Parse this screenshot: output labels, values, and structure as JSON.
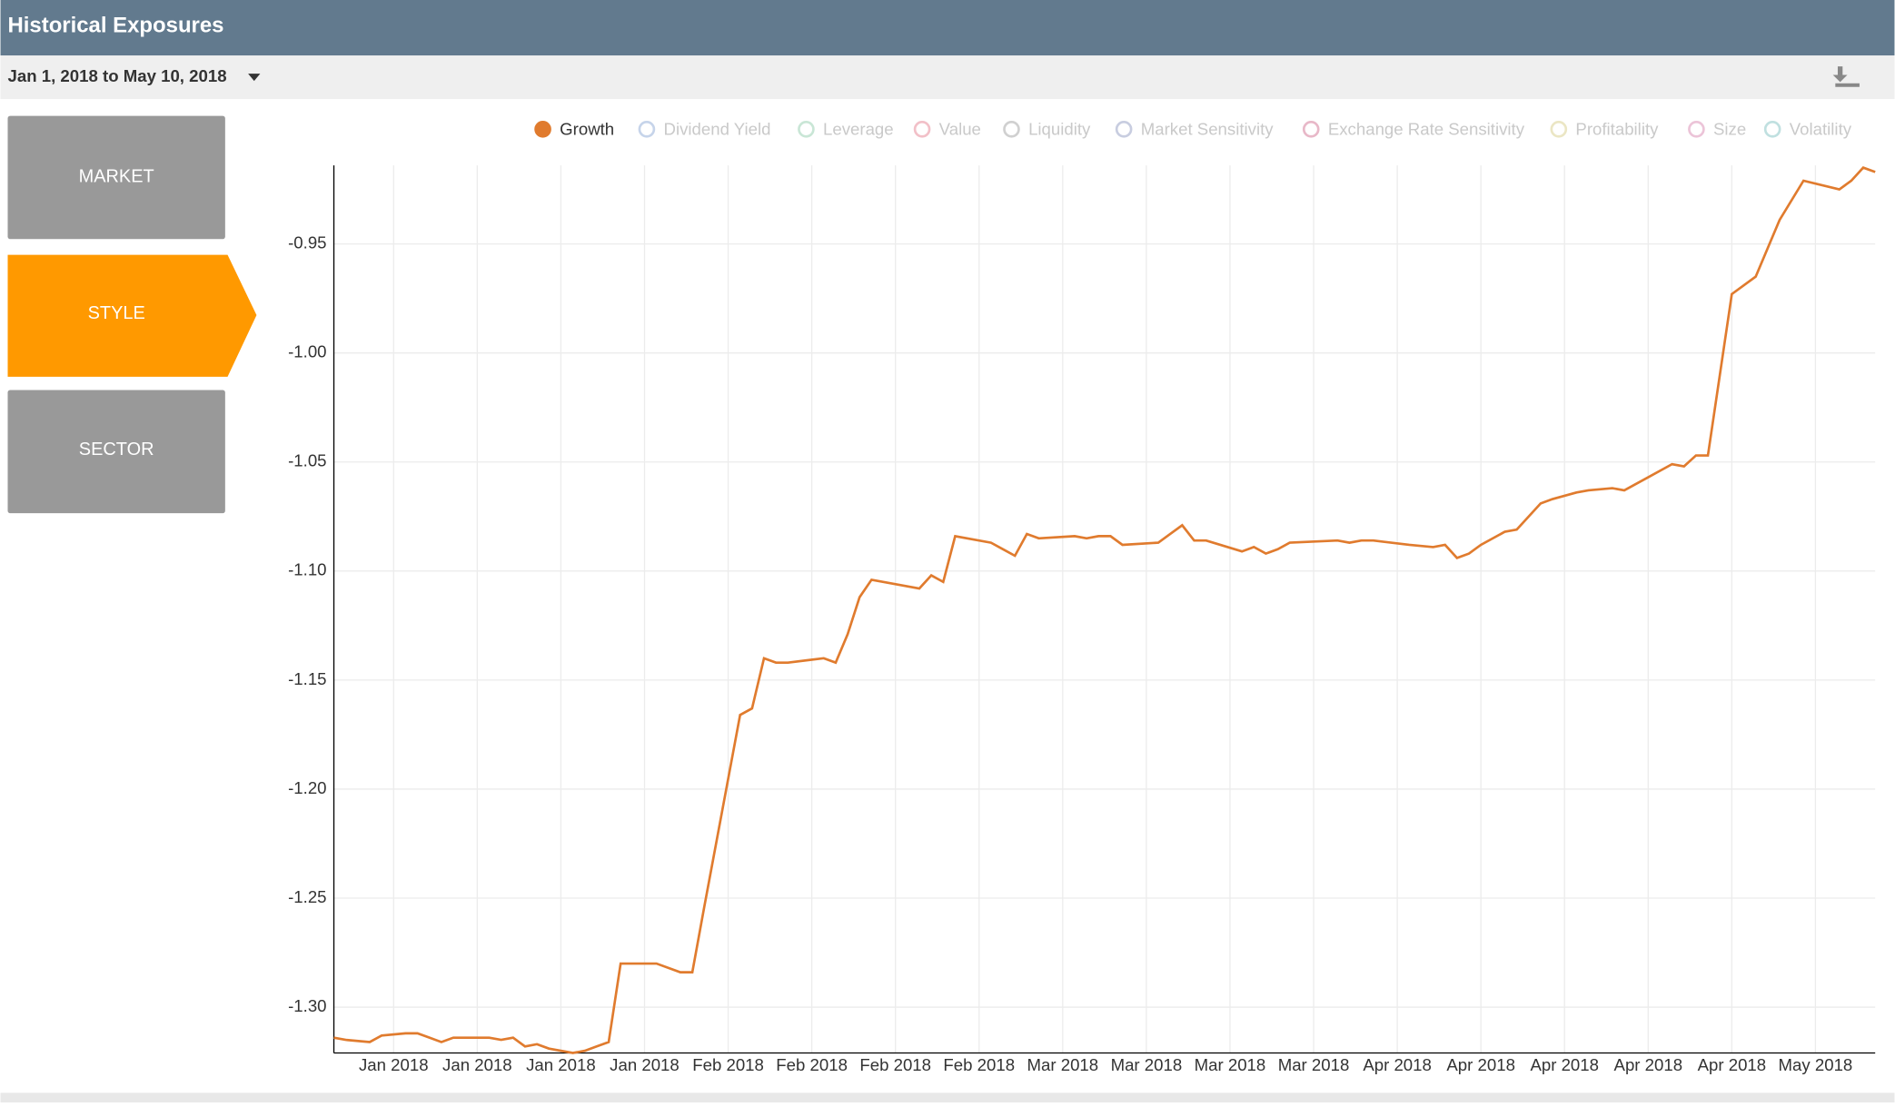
{
  "header": {
    "title": "Historical Exposures"
  },
  "date_range": "Jan 1, 2018 to May 10, 2018",
  "nav": [
    "MARKET",
    "STYLE",
    "SECTOR"
  ],
  "chart_data": {
    "type": "line",
    "x": [
      0,
      1,
      3,
      4,
      6,
      7,
      8,
      9,
      10,
      11,
      13,
      14,
      15,
      16,
      17,
      18,
      19,
      20,
      21,
      22,
      23,
      24,
      26,
      27,
      29,
      30,
      31,
      34,
      35,
      36,
      37,
      38,
      41,
      42,
      43,
      44,
      45,
      49,
      50,
      51,
      52,
      55,
      56,
      57,
      58,
      59,
      62,
      63,
      64,
      65,
      66,
      69,
      70,
      71,
      72,
      73,
      76,
      77,
      78,
      79,
      80,
      84,
      85,
      86,
      87,
      90,
      92,
      93,
      94,
      95,
      96,
      98,
      99,
      100,
      101,
      102,
      104,
      105,
      107,
      108,
      110,
      112,
      113,
      114,
      115,
      117,
      119,
      121,
      123,
      126,
      127,
      128,
      129
    ],
    "series": [
      {
        "name": "Growth",
        "color": "#e07b2e",
        "values": [
          -1.314,
          -1.315,
          -1.316,
          -1.313,
          -1.312,
          -1.312,
          -1.314,
          -1.316,
          -1.314,
          -1.314,
          -1.314,
          -1.315,
          -1.314,
          -1.318,
          -1.317,
          -1.319,
          -1.32,
          -1.321,
          -1.32,
          -1.318,
          -1.316,
          -1.28,
          -1.28,
          -1.28,
          -1.284,
          -1.284,
          -1.254,
          -1.166,
          -1.163,
          -1.14,
          -1.142,
          -1.142,
          -1.14,
          -1.142,
          -1.129,
          -1.112,
          -1.104,
          -1.108,
          -1.102,
          -1.105,
          -1.084,
          -1.087,
          -1.09,
          -1.093,
          -1.083,
          -1.085,
          -1.084,
          -1.085,
          -1.084,
          -1.084,
          -1.088,
          -1.087,
          -1.083,
          -1.079,
          -1.086,
          -1.086,
          -1.091,
          -1.089,
          -1.092,
          -1.09,
          -1.087,
          -1.086,
          -1.087,
          -1.086,
          -1.086,
          -1.088,
          -1.089,
          -1.088,
          -1.094,
          -1.092,
          -1.088,
          -1.082,
          -1.081,
          -1.075,
          -1.069,
          -1.067,
          -1.064,
          -1.063,
          -1.062,
          -1.063,
          -1.057,
          -1.051,
          -1.052,
          -1.047,
          -1.047,
          -0.973,
          -0.965,
          -0.939,
          -0.921,
          -0.925,
          -0.921,
          -0.915,
          -0.917
        ]
      }
    ],
    "hidden_series": [
      {
        "name": "Dividend Yield",
        "color": "#c6d4ea"
      },
      {
        "name": "Leverage",
        "color": "#c9e6d6"
      },
      {
        "name": "Value",
        "color": "#f2c0c8"
      },
      {
        "name": "Liquidity",
        "color": "#d0d0d0"
      },
      {
        "name": "Market Sensitivity",
        "color": "#c8cde0"
      },
      {
        "name": "Exchange Rate Sensitivity",
        "color": "#e8b8c8"
      },
      {
        "name": "Profitability",
        "color": "#ebe6c4"
      },
      {
        "name": "Size",
        "color": "#ecc4d8"
      },
      {
        "name": "Volatility",
        "color": "#c0e0e0"
      }
    ],
    "xlim": [
      0,
      129
    ],
    "xticks": [
      {
        "value": 5,
        "label": "Jan 2018"
      },
      {
        "value": 12,
        "label": "Jan 2018"
      },
      {
        "value": 19,
        "label": "Jan 2018"
      },
      {
        "value": 26,
        "label": "Jan 2018"
      },
      {
        "value": 33,
        "label": "Feb 2018"
      },
      {
        "value": 40,
        "label": "Feb 2018"
      },
      {
        "value": 47,
        "label": "Feb 2018"
      },
      {
        "value": 54,
        "label": "Feb 2018"
      },
      {
        "value": 61,
        "label": "Mar 2018"
      },
      {
        "value": 68,
        "label": "Mar 2018"
      },
      {
        "value": 75,
        "label": "Mar 2018"
      },
      {
        "value": 82,
        "label": "Mar 2018"
      },
      {
        "value": 89,
        "label": "Apr 2018"
      },
      {
        "value": 96,
        "label": "Apr 2018"
      },
      {
        "value": 103,
        "label": "Apr 2018"
      },
      {
        "value": 110,
        "label": "Apr 2018"
      },
      {
        "value": 117,
        "label": "Apr 2018"
      },
      {
        "value": 124,
        "label": "May 2018"
      }
    ],
    "ylim": [
      -1.321,
      -0.914
    ],
    "yticks": [
      {
        "value": -1.3,
        "label": "-1.30"
      },
      -1.25,
      {
        "value": -1.2,
        "label": "-1.20"
      },
      -1.15,
      {
        "value": -1.1,
        "label": "-1.10"
      },
      -1.05,
      {
        "value": -1,
        "label": "-1.00"
      },
      -0.95
    ],
    "grid": true
  }
}
